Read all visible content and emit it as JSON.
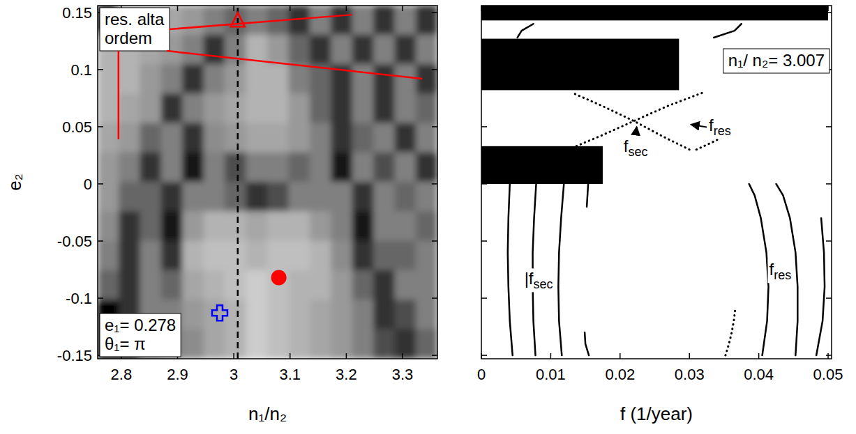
{
  "chart_data": [
    {
      "type": "heatmap",
      "xlabel": "n₁/n₂",
      "ylabel": "e₂",
      "xlim": [
        2.758,
        3.362
      ],
      "ylim": [
        -0.153,
        0.156
      ],
      "xticks": [
        2.8,
        2.9,
        3,
        3.1,
        3.2,
        3.3
      ],
      "yticks": [
        -0.15,
        -0.1,
        -0.05,
        0,
        0.05,
        0.1,
        0.15
      ],
      "cells": [
        [
          1,
          0.3,
          0.3,
          0.35,
          0.4,
          0.5,
          0.6,
          0.5,
          0.6,
          0.8,
          0.5,
          0.8,
          0.5,
          0.8,
          0.5,
          0.8
        ],
        [
          0.3,
          0.3,
          0.35,
          0.4,
          0.5,
          0.8,
          0.5,
          0.3,
          0.4,
          0.6,
          0.8,
          0.5,
          0.8,
          0.5,
          0.8,
          0.5
        ],
        [
          0.3,
          0.3,
          0.4,
          0.5,
          0.8,
          0.5,
          0.4,
          0.3,
          0.3,
          0.5,
          0.6,
          0.8,
          0.5,
          0.8,
          0.5,
          0.8
        ],
        [
          0.3,
          0.35,
          0.4,
          0.8,
          0.5,
          0.4,
          0.35,
          0.3,
          0.3,
          0.4,
          0.6,
          0.8,
          0.5,
          0.8,
          0.5,
          0.6
        ],
        [
          0.35,
          0.4,
          0.6,
          0.5,
          0.8,
          0.45,
          0.4,
          0.35,
          0.35,
          0.4,
          0.5,
          0.8,
          0.6,
          0.5,
          0.8,
          0.5
        ],
        [
          0.4,
          0.5,
          0.8,
          0.5,
          0.9,
          0.5,
          0.7,
          0.5,
          0.5,
          0.6,
          0.5,
          0.9,
          0.5,
          0.7,
          0.5,
          0.8
        ],
        [
          0.4,
          0.6,
          0.6,
          0.8,
          0.5,
          0.5,
          0.6,
          0.8,
          0.7,
          0.5,
          0.5,
          0.5,
          0.8,
          0.5,
          0.6,
          0.5
        ],
        [
          0.45,
          0.8,
          0.6,
          0.9,
          0.4,
          0.3,
          0.3,
          0.35,
          0.3,
          0.3,
          0.4,
          0.5,
          0.9,
          0.5,
          0.5,
          0.6
        ],
        [
          0.5,
          0.8,
          0.5,
          0.8,
          0.3,
          0.25,
          0.25,
          0.3,
          0.25,
          0.25,
          0.3,
          0.45,
          0.8,
          0.6,
          0.6,
          0.5
        ],
        [
          0.6,
          0.8,
          0.5,
          0.6,
          0.35,
          0.3,
          0.25,
          0.2,
          0.25,
          0.3,
          0.3,
          0.4,
          0.6,
          0.8,
          0.5,
          0.5
        ],
        [
          1,
          0.8,
          0.5,
          0.5,
          0.4,
          0.35,
          0.3,
          0.2,
          0.25,
          0.3,
          0.35,
          0.4,
          0.5,
          0.8,
          0.7,
          0.5
        ],
        [
          1,
          1,
          0.6,
          0.5,
          0.45,
          0.35,
          0.3,
          0.2,
          0.25,
          0.3,
          0.35,
          0.4,
          0.5,
          0.7,
          0.8,
          0.6
        ]
      ],
      "vline": {
        "x": 3.007,
        "line_style": "dashed",
        "color": "#000000"
      },
      "markers": [
        {
          "x": 3.007,
          "y": 0.143,
          "marker": "triangle-open",
          "color": "#ff0000"
        },
        {
          "x": 3.08,
          "y": -0.082,
          "marker": "circle",
          "color": "#ff0000"
        },
        {
          "x": 2.975,
          "y": -0.113,
          "marker": "cross-open",
          "color": "#0000ff"
        }
      ],
      "annotations": [
        {
          "lines": [
            "res. alta",
            "ordem"
          ],
          "color": "#ff0000",
          "targets": [
            [
              3.21,
              0.148
            ],
            [
              3.335,
              0.092
            ],
            [
              2.795,
              0.039
            ]
          ]
        },
        {
          "lines": [
            "e₁= 0.278",
            "θ₁= π"
          ]
        }
      ]
    },
    {
      "type": "line",
      "xlabel": "f (1/year)",
      "xlim": [
        0,
        0.0505
      ],
      "ylim": [
        -0.153,
        0.156
      ],
      "xticks": [
        0,
        0.01,
        0.02,
        0.03,
        0.04,
        0.05
      ],
      "yticks": [
        -0.15,
        -0.1,
        -0.05,
        0,
        0.05,
        0.1,
        0.15
      ],
      "tick_labels": "x",
      "color": "#000000",
      "series": [
        {
          "color": "#000000",
          "line_style": "solid",
          "x": [
            0.0045,
            0.0041,
            0.0039,
            0.0038,
            0.0039,
            0.0041
          ],
          "values": [
            -0.15,
            -0.12,
            -0.09,
            -0.06,
            -0.03,
            0
          ]
        },
        {
          "color": "#000000",
          "line_style": "solid",
          "x": [
            0.0078,
            0.0075,
            0.0074,
            0.0074,
            0.0076,
            0.0079
          ],
          "values": [
            -0.15,
            -0.12,
            -0.09,
            -0.06,
            -0.03,
            0
          ]
        },
        {
          "color": "#000000",
          "line_style": "solid",
          "x": [
            0.0116,
            0.0112,
            0.0111,
            0.0112,
            0.0115,
            0.0119
          ],
          "values": [
            -0.15,
            -0.12,
            -0.09,
            -0.06,
            -0.03,
            0
          ]
        },
        {
          "color": "#000000",
          "line_style": "solid",
          "x": [
            0.0155,
            0.015,
            0.0149
          ],
          "values": [
            -0.15,
            -0.14,
            -0.13
          ]
        },
        {
          "color": "#000000",
          "line_style": "solid",
          "x": [
            0.0152,
            0.0154,
            0.0158
          ],
          "values": [
            -0.02,
            0,
            0.01
          ]
        },
        {
          "color": "#000000",
          "line_style": "solid",
          "x": [
            0.0453,
            0.0456,
            0.0456,
            0.0453,
            0.0445,
            0.0435,
            0.0425
          ],
          "values": [
            -0.15,
            -0.12,
            -0.09,
            -0.06,
            -0.03,
            -0.01,
            0
          ]
        },
        {
          "color": "#000000",
          "line_style": "solid",
          "x": [
            0.0405,
            0.0412,
            0.0414,
            0.0411,
            0.0403,
            0.0394,
            0.0386
          ],
          "values": [
            -0.15,
            -0.12,
            -0.09,
            -0.06,
            -0.03,
            -0.01,
            0
          ]
        },
        {
          "color": "#000000",
          "line_style": "solid",
          "x": [
            0.0483,
            0.0492,
            0.0495,
            0.0494,
            0.049
          ],
          "values": [
            -0.15,
            -0.12,
            -0.09,
            -0.06,
            -0.03
          ]
        },
        {
          "color": "#000000",
          "line_style": "dotted",
          "x": [
            0.0352,
            0.0357,
            0.0361,
            0.0364,
            0.0366
          ],
          "values": [
            -0.15,
            -0.14,
            -0.13,
            -0.12,
            -0.11
          ]
        },
        {
          "color": "#000000",
          "line_style": "dotted",
          "x": [
            0.0125,
            0.0172,
            0.022,
            0.0268,
            0.032
          ],
          "values": [
            0.03,
            0.042,
            0.055,
            0.068,
            0.08
          ]
        },
        {
          "color": "#000000",
          "line_style": "dotted",
          "x": [
            0.03,
            0.026,
            0.022,
            0.0175,
            0.013
          ],
          "values": [
            0.03,
            0.042,
            0.055,
            0.068,
            0.08
          ]
        },
        {
          "color": "#000000",
          "line_style": "dotted",
          "x": [
            0.031,
            0.0335,
            0.036
          ],
          "values": [
            0.03,
            0.037,
            0.045
          ]
        },
        {
          "color": "#000000",
          "line_style": "solid",
          "x": [
            0.0052,
            0.0058,
            0.0075
          ],
          "values": [
            0.128,
            0.134,
            0.14
          ]
        },
        {
          "color": "#000000",
          "line_style": "solid",
          "x": [
            0.0335,
            0.0365,
            0.0375
          ],
          "values": [
            0.128,
            0.134,
            0.14
          ]
        }
      ],
      "bands": [
        {
          "f": [
            0,
            0.05
          ],
          "e2": [
            0.143,
            0.156
          ]
        },
        {
          "f": [
            0,
            0.0285
          ],
          "e2": [
            0.082,
            0.127
          ]
        },
        {
          "f": [
            0,
            0.0175
          ],
          "e2": [
            0,
            0.033
          ]
        }
      ],
      "annotations": [
        {
          "lines": [
            "n₁/ n₂= 3.007"
          ]
        },
        {
          "text": "f",
          "sub": "sec",
          "at": [
            0.0205,
            0.028
          ],
          "arrow_to": [
            0.0224,
            0.05
          ]
        },
        {
          "text": "f",
          "sub": "res",
          "at": [
            0.0328,
            0.046
          ],
          "arrow_to": [
            0.0302,
            0.052
          ]
        },
        {
          "text": "|f",
          "sub": "sec",
          "at": [
            0.0062,
            -0.088
          ]
        },
        {
          "text": "f",
          "sub": "res",
          "at": [
            0.0415,
            -0.08
          ]
        }
      ]
    }
  ]
}
